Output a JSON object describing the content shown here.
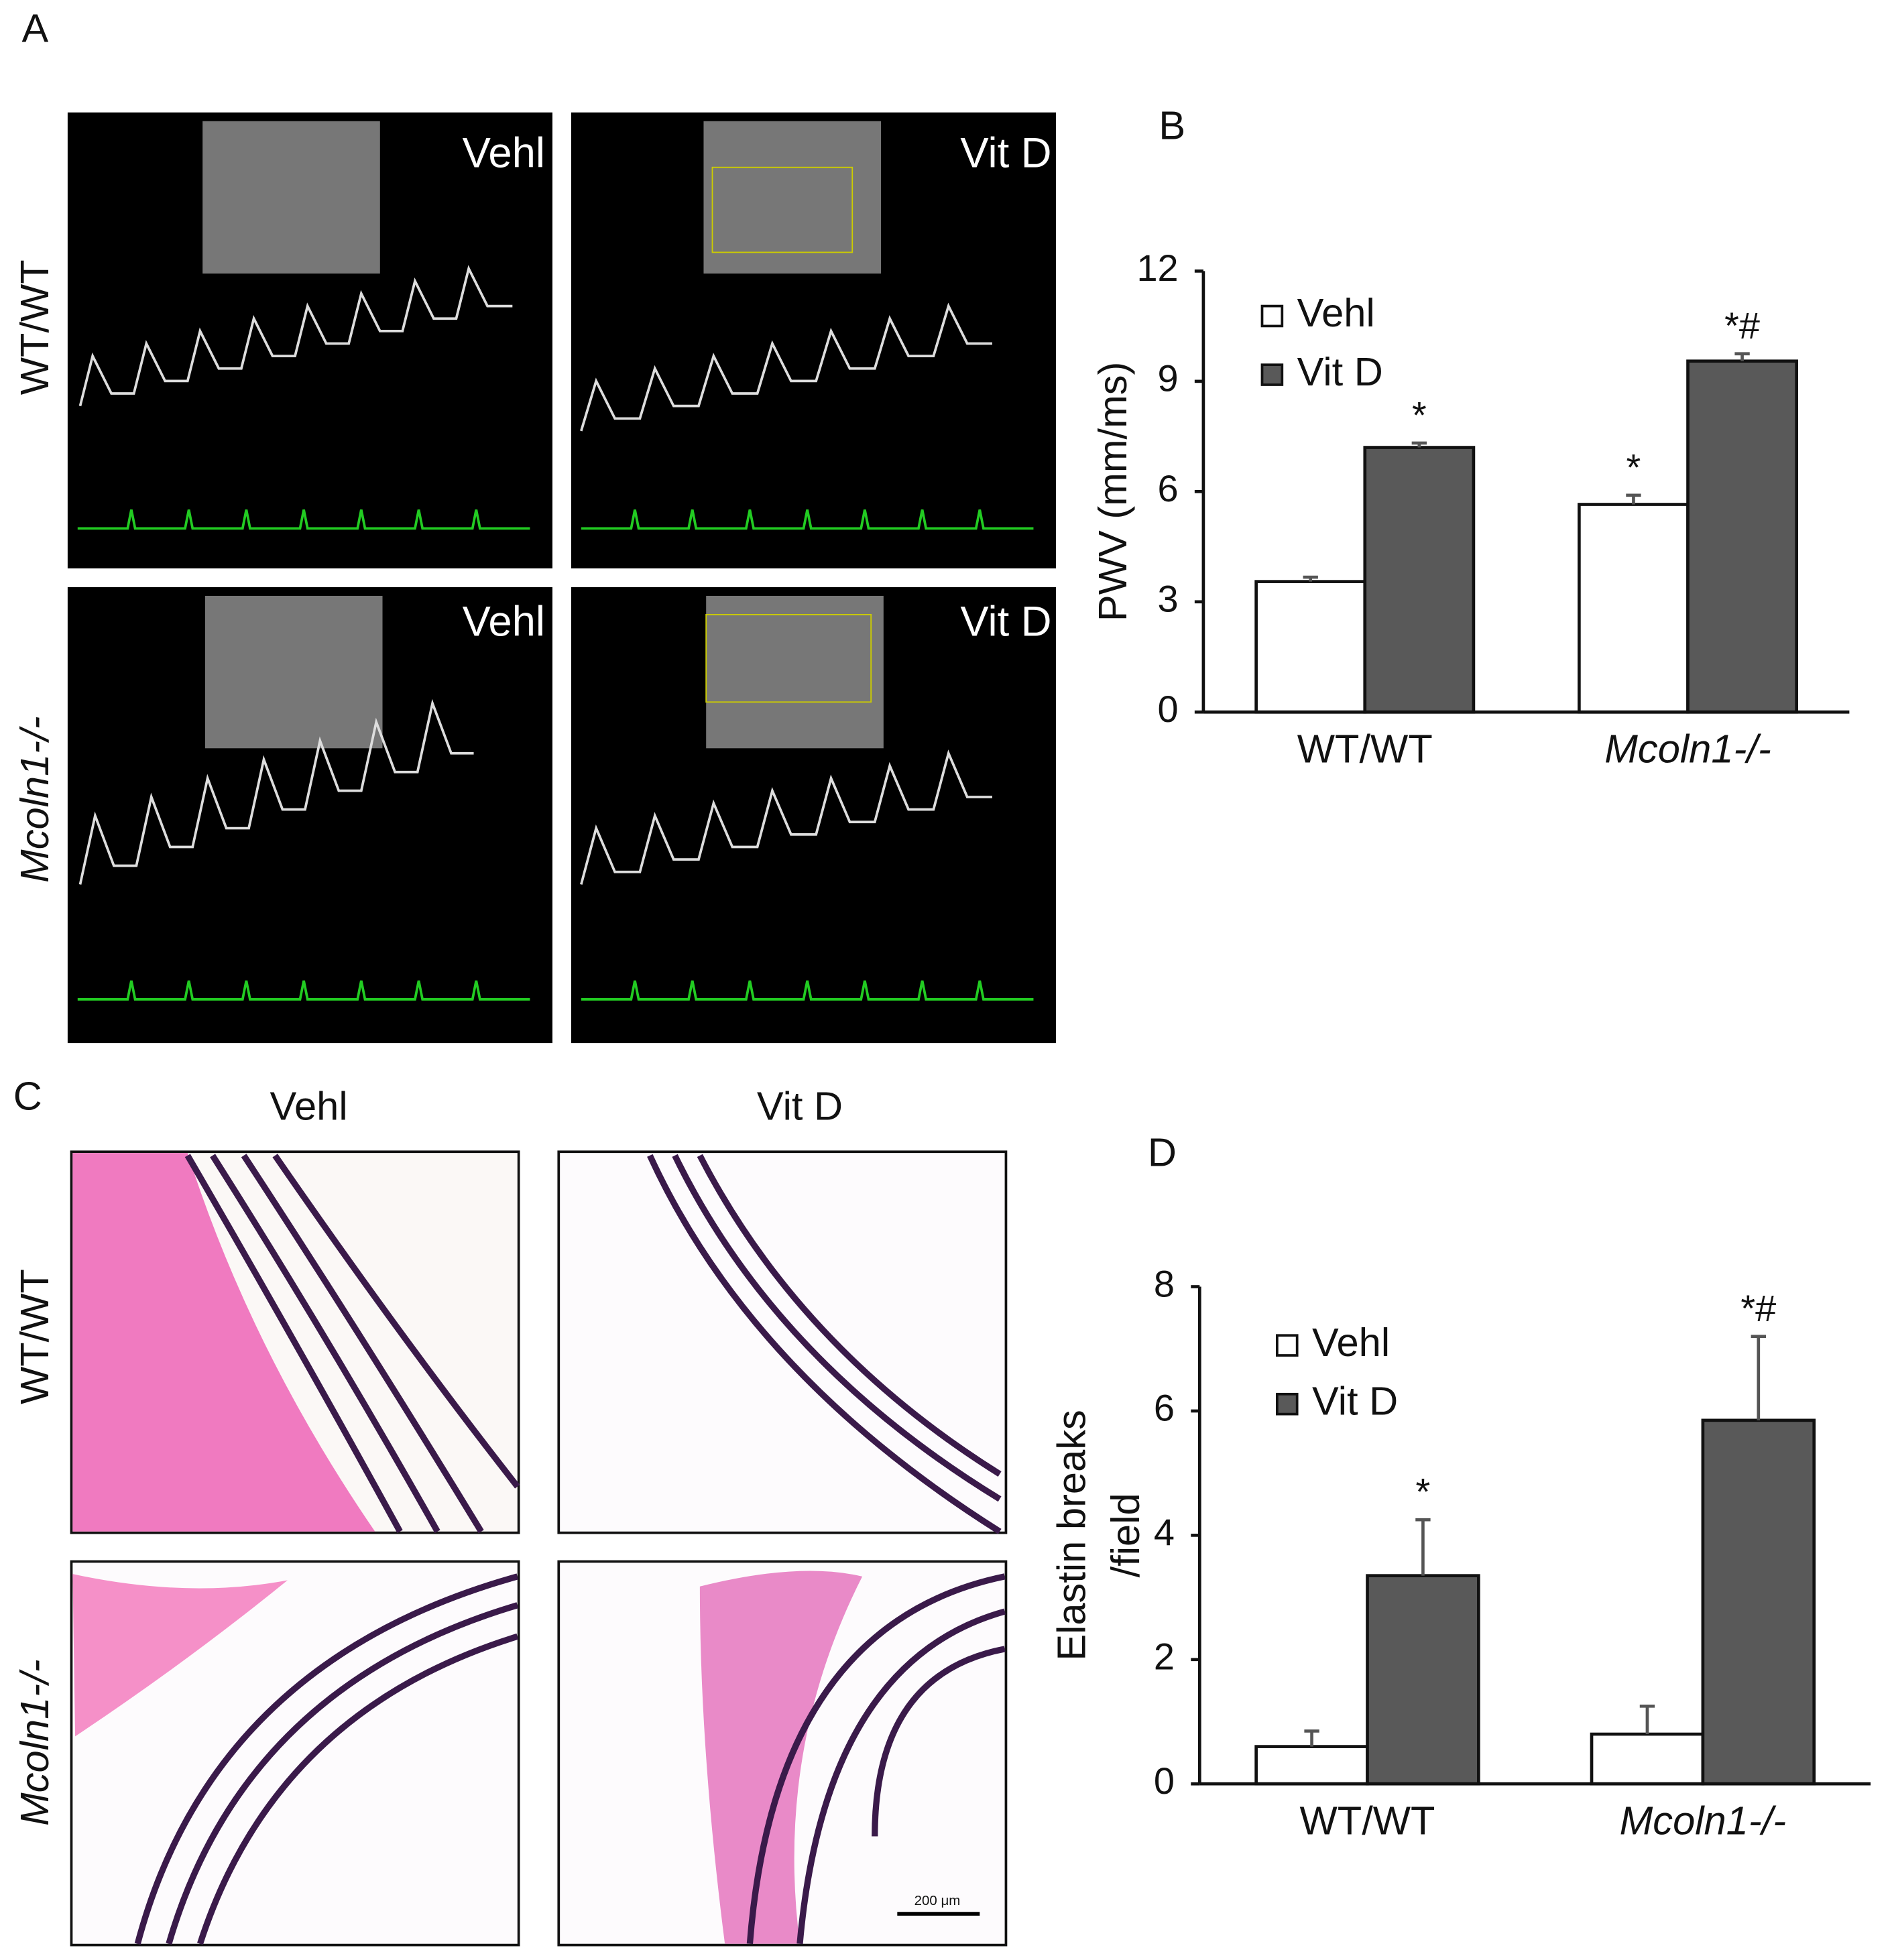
{
  "figure": {
    "panels": [
      "A",
      "B",
      "C",
      "D"
    ],
    "a_images": [
      "Vehl",
      "Vit D",
      "Vehl",
      "Vit D"
    ],
    "a_rows": [
      "WT/WT",
      "Mcoln1-/-"
    ],
    "c_columns": [
      "Vehl",
      "Vit D"
    ],
    "c_rows": [
      "WT/WT",
      "Mcoln1-/-"
    ],
    "scale_bar": "200 μm"
  },
  "chart_data": [
    {
      "type": "bar",
      "ylabel": [
        "PWV (mm/ms)"
      ],
      "categories": [
        "WT/WT",
        "Mcoln1-/-"
      ],
      "series": [
        {
          "name": "Vehl",
          "color": "#ffffff",
          "values": [
            3.55,
            5.65
          ],
          "errors": [
            0.12,
            0.25
          ],
          "annotations": [
            null,
            "*"
          ]
        },
        {
          "name": "Vit D",
          "color": "#595959",
          "values": [
            7.2,
            9.55
          ],
          "errors": [
            0.12,
            0.2
          ],
          "annotations": [
            "*",
            "*#"
          ]
        }
      ],
      "ylim": [
        0,
        12
      ],
      "yticks": [
        0,
        3,
        6,
        9,
        12
      ],
      "legend": "upper left"
    },
    {
      "type": "bar",
      "ylabel": [
        "Elastin breaks",
        "/field"
      ],
      "categories": [
        "WT/WT",
        "Mcoln1-/-"
      ],
      "series": [
        {
          "name": "Vehl",
          "color": "#ffffff",
          "values": [
            0.6,
            0.8
          ],
          "errors": [
            0.25,
            0.45
          ],
          "annotations": [
            null,
            null
          ]
        },
        {
          "name": "Vit D",
          "color": "#595959",
          "values": [
            3.35,
            5.85
          ],
          "errors": [
            0.9,
            1.35
          ],
          "annotations": [
            "*",
            "*#"
          ]
        }
      ],
      "ylim": [
        0,
        8
      ],
      "yticks": [
        0,
        2,
        4,
        6,
        8
      ],
      "legend": "upper left"
    }
  ]
}
